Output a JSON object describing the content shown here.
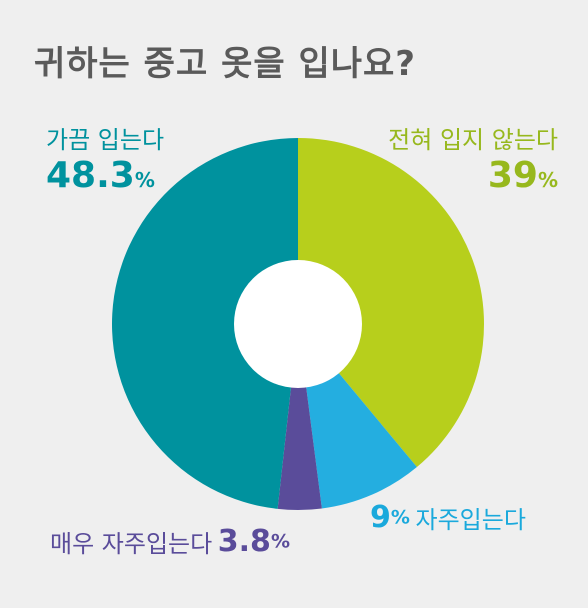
{
  "title": "귀하는 중고 옷을 입나요?",
  "chart_data": {
    "type": "pie",
    "title": "귀하는 중고 옷을 입나요?",
    "slices": [
      {
        "label": "전혀 입지 않는다",
        "value": 39,
        "color": "#b7cf1c"
      },
      {
        "label": "자주입는다",
        "value": 9,
        "color": "#24aee0"
      },
      {
        "label": "매우 자주입는다",
        "value": 3.8,
        "color": "#5a4c9a"
      },
      {
        "label": "가끔 입는다",
        "value": 48.3,
        "color": "#00929e"
      }
    ],
    "unit": "%"
  },
  "labels": {
    "often": {
      "name": "가끔 입는다",
      "value": "48.3",
      "unit": "%"
    },
    "never": {
      "name": "전혀 입지 않는다",
      "value": "39",
      "unit": "%"
    },
    "very": {
      "name": "매우 자주입는다",
      "value": "3.8",
      "unit": "%"
    },
    "freq": {
      "name": "자주입는다",
      "value": "9",
      "unit": "%"
    }
  }
}
